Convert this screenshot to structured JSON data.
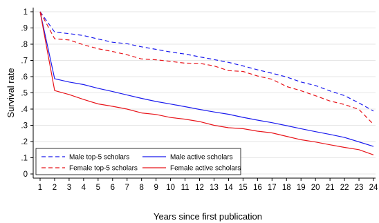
{
  "chart_data": {
    "type": "line",
    "xlabel": "Years since first publication",
    "ylabel": "Survival rate",
    "xlim": [
      1,
      24
    ],
    "ylim": [
      0,
      1
    ],
    "x_ticks": [
      1,
      2,
      3,
      4,
      5,
      6,
      7,
      8,
      9,
      10,
      11,
      12,
      13,
      14,
      15,
      16,
      17,
      18,
      19,
      20,
      21,
      22,
      23,
      24
    ],
    "y_ticks": [
      {
        "value": 0,
        "label": "0"
      },
      {
        "value": 0.1,
        "label": ".1"
      },
      {
        "value": 0.2,
        "label": ".2"
      },
      {
        "value": 0.3,
        "label": ".3"
      },
      {
        "value": 0.4,
        "label": ".4"
      },
      {
        "value": 0.5,
        "label": ".5"
      },
      {
        "value": 0.6,
        "label": ".6"
      },
      {
        "value": 0.7,
        "label": ".7"
      },
      {
        "value": 0.8,
        "label": ".8"
      },
      {
        "value": 0.9,
        "label": ".9"
      },
      {
        "value": 1,
        "label": "1"
      }
    ],
    "grid": "horizontal",
    "legend_position": "bottom-left",
    "x": [
      1,
      2,
      3,
      4,
      5,
      6,
      7,
      8,
      9,
      10,
      11,
      12,
      13,
      14,
      15,
      16,
      17,
      18,
      19,
      20,
      21,
      22,
      23,
      24
    ],
    "series": [
      {
        "name": "Male top-5 scholars",
        "color": "#1a1aee",
        "dash": "dashed",
        "values": [
          1.0,
          0.875,
          0.865,
          0.853,
          0.832,
          0.812,
          0.803,
          0.784,
          0.768,
          0.752,
          0.739,
          0.722,
          0.705,
          0.688,
          0.666,
          0.642,
          0.621,
          0.598,
          0.567,
          0.545,
          0.512,
          0.483,
          0.438,
          0.388
        ]
      },
      {
        "name": "Female top-5 scholars",
        "color": "#e8141a",
        "dash": "dashed",
        "values": [
          1.0,
          0.833,
          0.826,
          0.796,
          0.772,
          0.755,
          0.735,
          0.709,
          0.704,
          0.694,
          0.683,
          0.682,
          0.666,
          0.637,
          0.632,
          0.604,
          0.584,
          0.539,
          0.513,
          0.482,
          0.45,
          0.428,
          0.398,
          0.306
        ]
      },
      {
        "name": "Male active scholars",
        "color": "#1a1aee",
        "dash": "solid",
        "values": [
          1.0,
          0.587,
          0.567,
          0.551,
          0.528,
          0.508,
          0.487,
          0.466,
          0.447,
          0.431,
          0.415,
          0.398,
          0.382,
          0.368,
          0.349,
          0.332,
          0.316,
          0.298,
          0.279,
          0.261,
          0.244,
          0.225,
          0.198,
          0.17
        ]
      },
      {
        "name": "Female active scholars",
        "color": "#e8141a",
        "dash": "solid",
        "values": [
          1.0,
          0.514,
          0.49,
          0.459,
          0.432,
          0.417,
          0.4,
          0.376,
          0.367,
          0.348,
          0.338,
          0.323,
          0.3,
          0.285,
          0.279,
          0.264,
          0.253,
          0.232,
          0.211,
          0.197,
          0.18,
          0.164,
          0.15,
          0.118
        ]
      }
    ],
    "legend": [
      {
        "label": "Male top-5 scholars",
        "series": 0
      },
      {
        "label": "Male active scholars",
        "series": 2
      },
      {
        "label": "Female top-5 scholars",
        "series": 1
      },
      {
        "label": "Female active scholars",
        "series": 3
      }
    ]
  }
}
